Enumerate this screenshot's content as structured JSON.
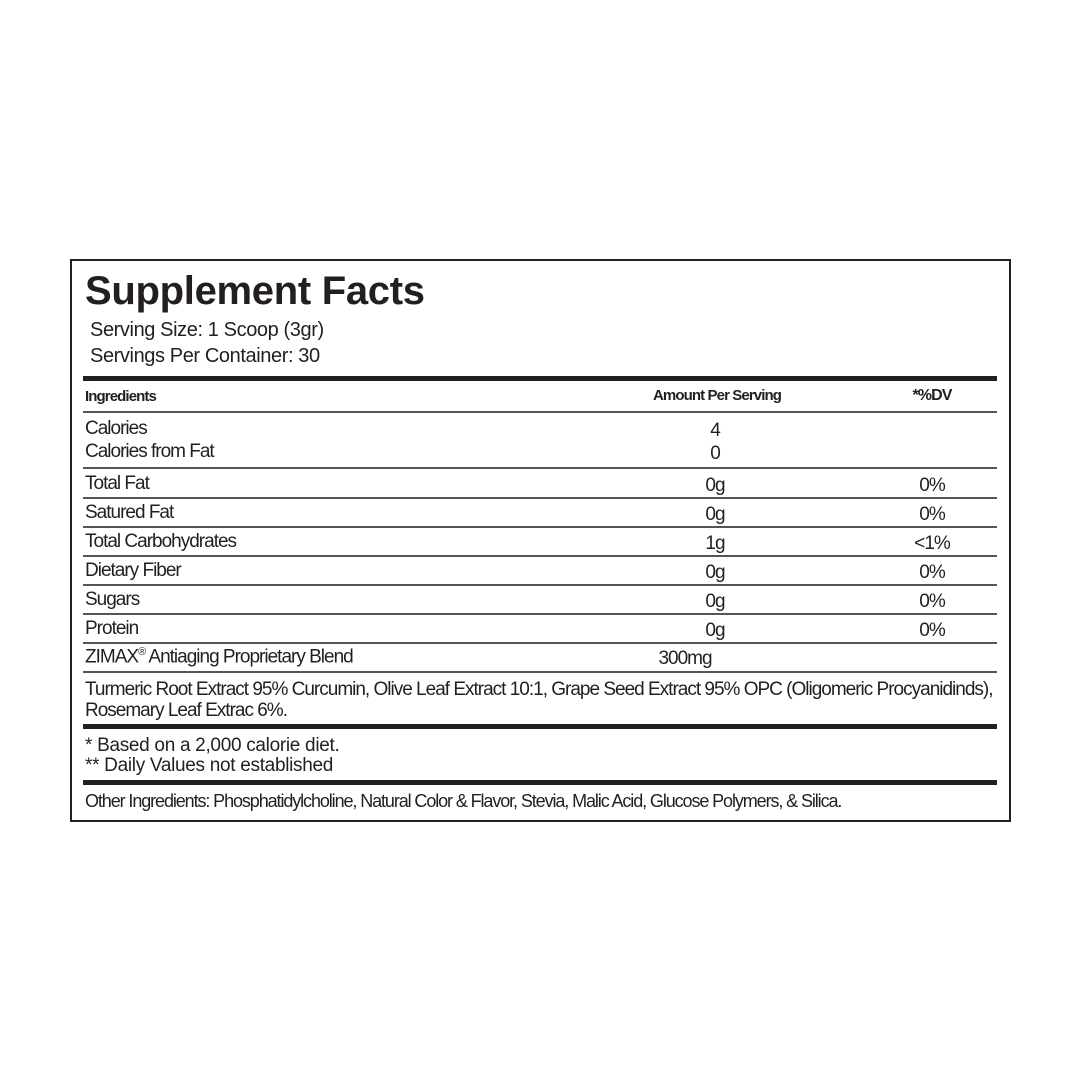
{
  "title": "Supplement Facts",
  "serving_size": "Serving Size: 1 Scoop (3gr)",
  "servings_per_container": "Servings Per Container: 30",
  "headers": {
    "ingredients": "Ingredients",
    "amount": "Amount Per Serving",
    "dv": "*%DV"
  },
  "calories": {
    "label": "Calories",
    "amount": "4",
    "from_fat_label": "Calories from Fat",
    "from_fat_amount": "0"
  },
  "rows": [
    {
      "name": "Total Fat",
      "amount": "0g",
      "dv": "0%"
    },
    {
      "name": "Satured Fat",
      "amount": "0g",
      "dv": "0%"
    },
    {
      "name": "Total Carbohydrates",
      "amount": "1g",
      "dv": "<1%"
    },
    {
      "name": "Dietary Fiber",
      "amount": "0g",
      "dv": "0%"
    },
    {
      "name": "Sugars",
      "amount": "0g",
      "dv": "0%"
    },
    {
      "name": "Protein",
      "amount": "0g",
      "dv": "0%"
    }
  ],
  "blend": {
    "brand": "ZIMAX",
    "mark": "®",
    "name": " Antiaging Proprietary Blend",
    "amount": "300mg"
  },
  "blend_ingredients": "Turmeric Root Extract 95% Curcumin, Olive Leaf Extract 10:1, Grape Seed Extract 95% OPC (Oligomeric Procyanidinds), Rosemary Leaf Extrac 6%.",
  "footnotes": [
    "* Based on a 2,000 calorie diet.",
    "** Daily Values not established"
  ],
  "other_ingredients": "Other Ingredients: Phosphatidylcholine, Natural Color & Flavor, Stevia, Malic Acid, Glucose Polymers, & Silica."
}
